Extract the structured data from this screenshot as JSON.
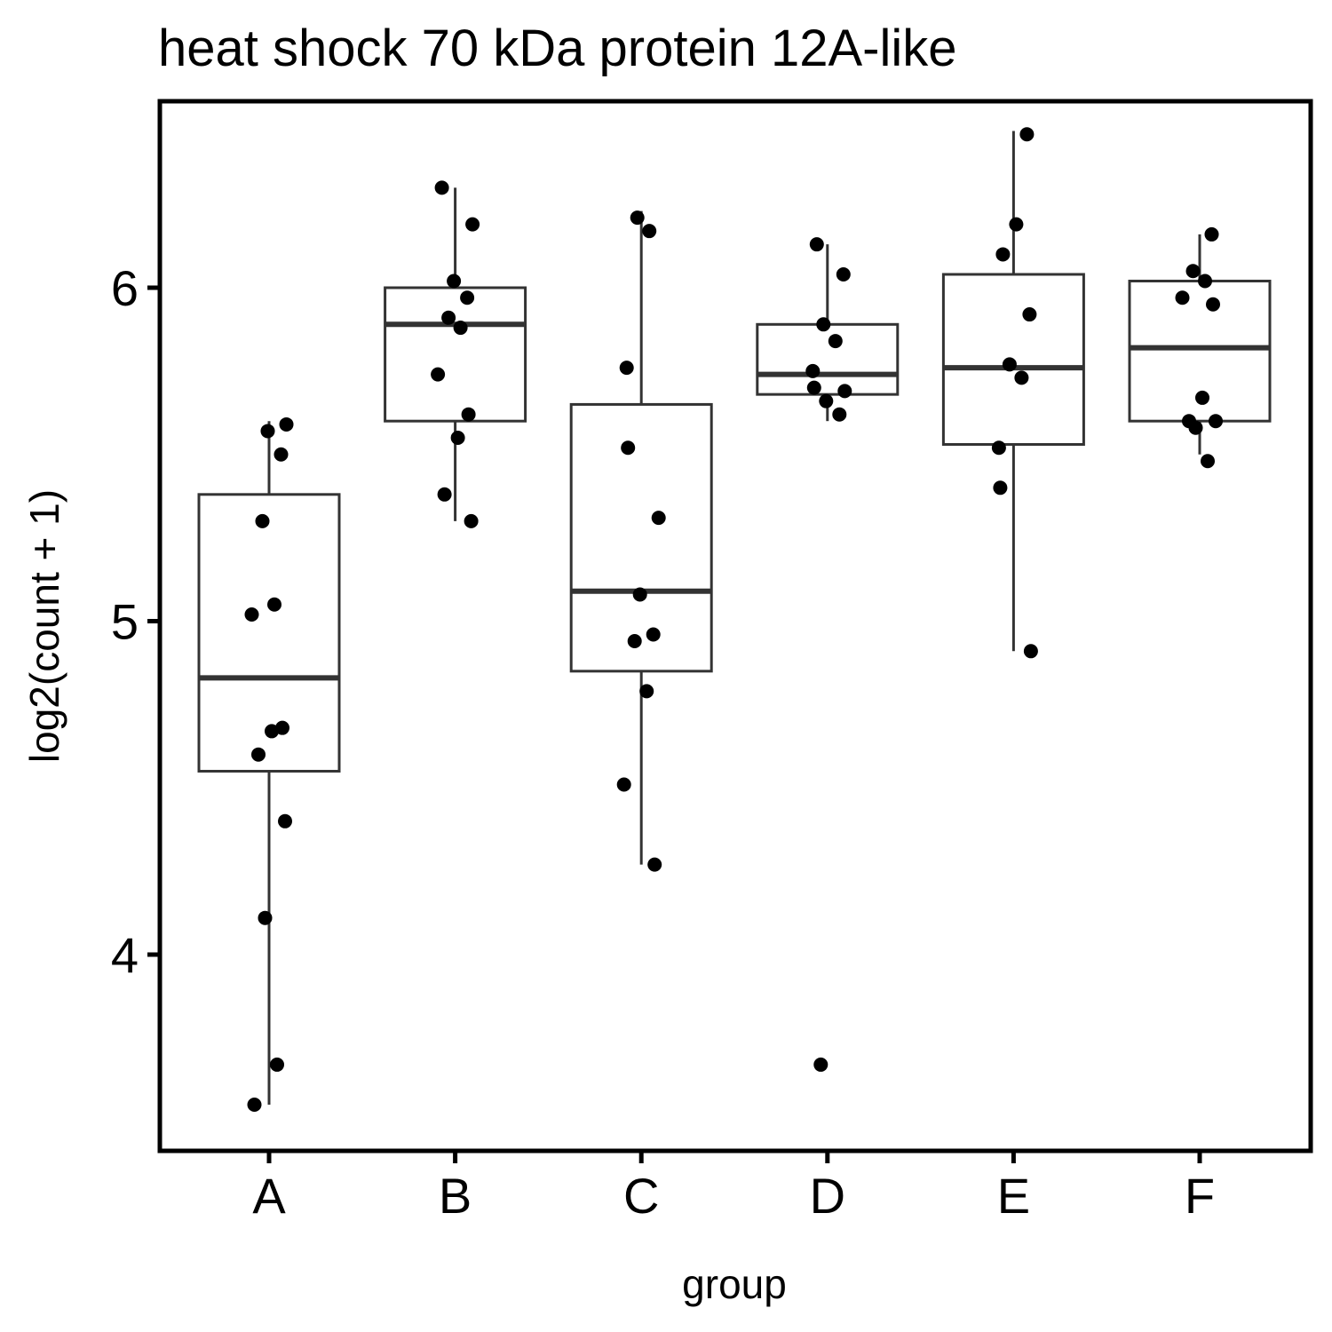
{
  "chart_data": {
    "type": "boxplot",
    "title": "heat shock 70 kDa protein 12A-like",
    "xlabel": "group",
    "ylabel": "log2(count + 1)",
    "ylim": [
      3.45,
      6.5
    ],
    "yticks": [
      4,
      5,
      6
    ],
    "categories": [
      "A",
      "B",
      "C",
      "D",
      "E",
      "F"
    ],
    "grid": false,
    "legend": "none",
    "box_color": "#333333",
    "point_color": "#000000",
    "boxes": [
      {
        "group": "A",
        "whisker_low": 3.55,
        "q1": 4.55,
        "median": 4.83,
        "q3": 5.38,
        "whisker_high": 5.6
      },
      {
        "group": "B",
        "whisker_low": 5.3,
        "q1": 5.6,
        "median": 5.89,
        "q3": 6.0,
        "whisker_high": 6.3
      },
      {
        "group": "C",
        "whisker_low": 4.27,
        "q1": 4.85,
        "median": 5.09,
        "q3": 5.65,
        "whisker_high": 6.23
      },
      {
        "group": "D",
        "whisker_low": 5.6,
        "q1": 5.68,
        "median": 5.74,
        "q3": 5.89,
        "whisker_high": 6.13
      },
      {
        "group": "E",
        "whisker_low": 4.91,
        "q1": 5.53,
        "median": 5.76,
        "q3": 6.04,
        "whisker_high": 6.47
      },
      {
        "group": "F",
        "whisker_low": 5.5,
        "q1": 5.6,
        "median": 5.82,
        "q3": 6.02,
        "whisker_high": 6.16
      }
    ],
    "points": [
      {
        "group": "A",
        "values": [
          3.55,
          3.67,
          4.11,
          4.4,
          4.6,
          4.67,
          4.68,
          5.02,
          5.05,
          5.3,
          5.5,
          5.57,
          5.59
        ]
      },
      {
        "group": "B",
        "values": [
          5.3,
          5.38,
          5.55,
          5.62,
          5.74,
          5.88,
          5.91,
          5.97,
          6.02,
          6.19,
          6.3
        ]
      },
      {
        "group": "C",
        "values": [
          4.27,
          4.51,
          4.79,
          4.94,
          4.96,
          5.08,
          5.31,
          5.52,
          5.76,
          6.17,
          6.21
        ]
      },
      {
        "group": "D",
        "values": [
          3.67,
          5.62,
          5.66,
          5.69,
          5.7,
          5.75,
          5.84,
          5.89,
          6.04,
          6.13
        ]
      },
      {
        "group": "E",
        "values": [
          4.91,
          5.4,
          5.52,
          5.73,
          5.77,
          5.92,
          6.1,
          6.19,
          6.46
        ]
      },
      {
        "group": "F",
        "values": [
          5.48,
          5.58,
          5.6,
          5.6,
          5.67,
          5.95,
          5.97,
          6.02,
          6.05,
          6.16
        ]
      }
    ]
  }
}
